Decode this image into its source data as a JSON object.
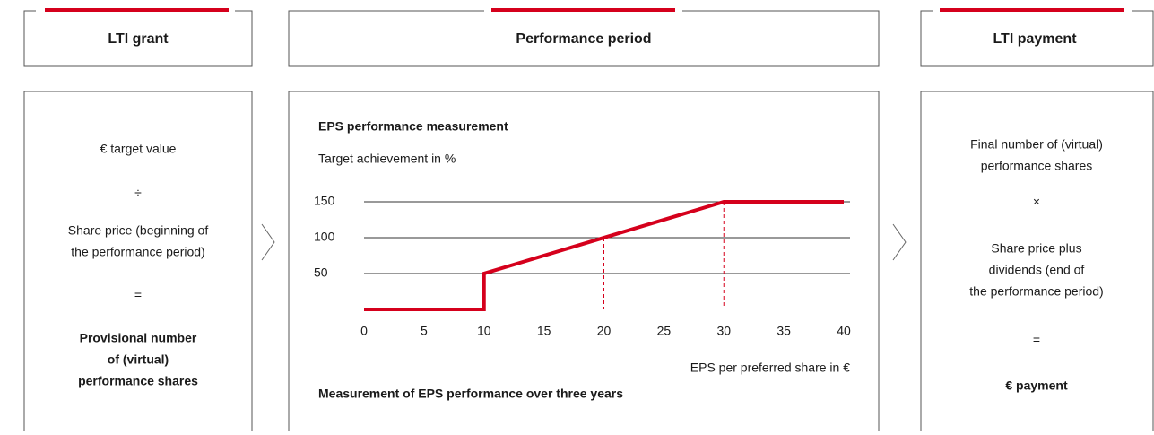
{
  "grant": {
    "title": "LTI grant",
    "items": [
      [
        "€ target value"
      ],
      [
        "÷"
      ],
      [
        "Share price (beginning of",
        "the performance period)"
      ],
      [
        "="
      ],
      [
        "Provisional number",
        "of (virtual)",
        "performance shares"
      ]
    ]
  },
  "period": {
    "title": "Performance period",
    "chart": {
      "type": "line",
      "title": "EPS performance measurement",
      "y_label": "Target achievement in %",
      "x_label": "EPS per preferred share in €",
      "caption": "Measurement of EPS performance over three years",
      "x": [
        0,
        10,
        10,
        30,
        40
      ],
      "values": [
        0,
        0,
        50,
        150,
        150
      ],
      "color": "#d5001c",
      "xlim": [
        0,
        40
      ],
      "ylim": [
        0,
        150
      ],
      "xticks": [
        0,
        5,
        10,
        15,
        20,
        25,
        30,
        35,
        40
      ],
      "yticks": [
        50,
        100,
        150
      ],
      "grid": true,
      "reference_x": [
        20,
        30
      ]
    }
  },
  "payment": {
    "title": "LTI payment",
    "items": [
      [
        "Final number of (virtual)",
        "performance shares"
      ],
      [
        "×"
      ],
      [
        "Share price plus",
        "dividends (end of",
        "the performance period)"
      ],
      [
        "="
      ],
      [
        "€ payment"
      ]
    ]
  }
}
